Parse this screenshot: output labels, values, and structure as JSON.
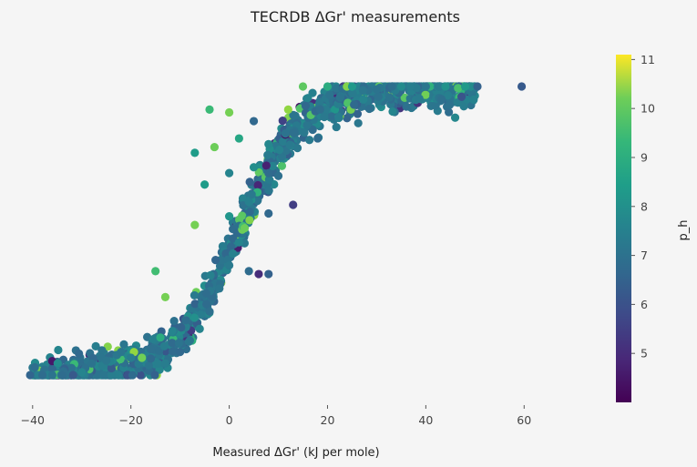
{
  "chart_data": {
    "type": "scatter",
    "title": "TECRDB ΔGr' measurements",
    "xlabel": "Measured ΔGr' (kJ per mole)",
    "ylabel": "",
    "xlim": [
      -42,
      72
    ],
    "ylim": [
      0,
      1
    ],
    "x_ticks": [
      -40,
      -20,
      0,
      20,
      40,
      60
    ],
    "x_tick_labels": [
      "−40",
      "−20",
      "0",
      "20",
      "40",
      "60"
    ],
    "y_axis_visible": false,
    "grid": false,
    "colorbar": {
      "label": "p_h",
      "colormap": "viridis",
      "range": [
        4.0,
        11.1
      ],
      "ticks": [
        5,
        6,
        7,
        8,
        9,
        10,
        11
      ],
      "tick_labels": [
        "5",
        "6",
        "7",
        "8",
        "9",
        "10",
        "11"
      ]
    },
    "point_color_note": "viridis by p_h",
    "sample_points": [
      {
        "x": -40.5,
        "y": 0.0,
        "c": 6.3
      },
      {
        "x": -38.0,
        "y": 0.0,
        "c": 6.5
      },
      {
        "x": -36.0,
        "y": 0.0,
        "c": 6.7
      },
      {
        "x": -34.0,
        "y": 0.0,
        "c": 6.5
      },
      {
        "x": -30.0,
        "y": 0.01,
        "c": 7.2
      },
      {
        "x": -28.0,
        "y": 0.04,
        "c": 6.7
      },
      {
        "x": -25.0,
        "y": 0.05,
        "c": 6.8
      },
      {
        "x": -22.0,
        "y": 0.08,
        "c": 6.8
      },
      {
        "x": -20.0,
        "y": 0.06,
        "c": 7.0
      },
      {
        "x": -16.0,
        "y": 0.09,
        "c": 6.6
      },
      {
        "x": -14.0,
        "y": 0.13,
        "c": 8.4
      },
      {
        "x": -13.0,
        "y": 0.04,
        "c": 7.0
      },
      {
        "x": -10.0,
        "y": 0.08,
        "c": 6.4
      },
      {
        "x": -8.0,
        "y": 0.12,
        "c": 6.8
      },
      {
        "x": -6.0,
        "y": 0.16,
        "c": 7.2
      },
      {
        "x": -4.0,
        "y": 0.22,
        "c": 6.6
      },
      {
        "x": -2.0,
        "y": 0.3,
        "c": 6.8
      },
      {
        "x": -13.0,
        "y": 0.27,
        "c": 9.6
      },
      {
        "x": -15.0,
        "y": 0.36,
        "c": 8.9
      },
      {
        "x": 0.0,
        "y": 0.38,
        "c": 6.9
      },
      {
        "x": 2.0,
        "y": 0.46,
        "c": 7.2
      },
      {
        "x": 4.0,
        "y": 0.36,
        "c": 6.5
      },
      {
        "x": 6.0,
        "y": 0.35,
        "c": 4.9
      },
      {
        "x": 8.0,
        "y": 0.35,
        "c": 6.2
      },
      {
        "x": -7.0,
        "y": 0.52,
        "c": 9.6
      },
      {
        "x": 0.0,
        "y": 0.55,
        "c": 7.7
      },
      {
        "x": 4.0,
        "y": 0.6,
        "c": 7.1
      },
      {
        "x": 8.0,
        "y": 0.56,
        "c": 6.4
      },
      {
        "x": 13.0,
        "y": 0.59,
        "c": 5.3
      },
      {
        "x": -5.0,
        "y": 0.66,
        "c": 7.9
      },
      {
        "x": 0.0,
        "y": 0.7,
        "c": 7.2
      },
      {
        "x": 5.0,
        "y": 0.72,
        "c": 7.5
      },
      {
        "x": 10.0,
        "y": 0.69,
        "c": 6.6
      },
      {
        "x": -7.0,
        "y": 0.77,
        "c": 7.9
      },
      {
        "x": -3.0,
        "y": 0.79,
        "c": 9.5
      },
      {
        "x": 2.0,
        "y": 0.82,
        "c": 8.2
      },
      {
        "x": 8.0,
        "y": 0.8,
        "c": 7.3
      },
      {
        "x": 13.0,
        "y": 0.84,
        "c": 6.6
      },
      {
        "x": 18.0,
        "y": 0.82,
        "c": 6.5
      },
      {
        "x": -4.0,
        "y": 0.92,
        "c": 8.8
      },
      {
        "x": 0.0,
        "y": 0.91,
        "c": 9.6
      },
      {
        "x": 5.0,
        "y": 0.88,
        "c": 6.4
      },
      {
        "x": 12.0,
        "y": 0.92,
        "c": 9.9
      },
      {
        "x": 16.0,
        "y": 0.96,
        "c": 7.2
      },
      {
        "x": 15.0,
        "y": 1.0,
        "c": 9.3
      },
      {
        "x": 20.0,
        "y": 1.0,
        "c": 8.4
      },
      {
        "x": 25.0,
        "y": 1.0,
        "c": 7.8
      },
      {
        "x": 30.0,
        "y": 0.99,
        "c": 6.7
      },
      {
        "x": 35.0,
        "y": 1.0,
        "c": 7.4
      },
      {
        "x": 40.0,
        "y": 1.0,
        "c": 6.8
      },
      {
        "x": 44.0,
        "y": 1.0,
        "c": 7.6
      },
      {
        "x": 48.0,
        "y": 1.0,
        "c": 7.8
      },
      {
        "x": 50.5,
        "y": 1.0,
        "c": 6.2
      },
      {
        "x": 59.5,
        "y": 1.0,
        "c": 6.0
      }
    ]
  }
}
